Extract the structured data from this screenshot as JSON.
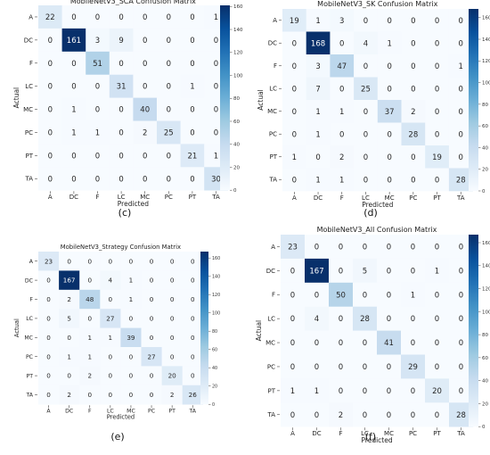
{
  "categories": [
    "A",
    "DC",
    "F",
    "LC",
    "MC",
    "PC",
    "PT",
    "TA"
  ],
  "xlabel": "Predicted",
  "ylabel": "Actual",
  "colormap": {
    "low": "#f7fbff",
    "high": "#08306b"
  },
  "chart_data": [
    {
      "type": "heatmap",
      "title": "MobileNetV3_SCA Confusion Matrix",
      "caption": "(c)",
      "vmax": 161,
      "colorbar_ticks": [
        0,
        20,
        40,
        60,
        80,
        100,
        120,
        140,
        160
      ],
      "values": [
        [
          22,
          0,
          0,
          0,
          0,
          0,
          0,
          1
        ],
        [
          0,
          161,
          3,
          9,
          0,
          0,
          0,
          0
        ],
        [
          0,
          0,
          51,
          0,
          0,
          0,
          0,
          0
        ],
        [
          0,
          0,
          0,
          31,
          0,
          0,
          1,
          0
        ],
        [
          0,
          1,
          0,
          0,
          40,
          0,
          0,
          0
        ],
        [
          0,
          1,
          1,
          0,
          2,
          25,
          0,
          0
        ],
        [
          0,
          0,
          0,
          0,
          0,
          0,
          21,
          1
        ],
        [
          0,
          0,
          0,
          0,
          0,
          0,
          0,
          30
        ]
      ]
    },
    {
      "type": "heatmap",
      "title": "MobileNetV3_SK Confusion Matrix",
      "caption": "(d)",
      "vmax": 168,
      "colorbar_ticks": [
        0,
        20,
        40,
        60,
        80,
        100,
        120,
        140,
        160
      ],
      "values": [
        [
          19,
          1,
          3,
          0,
          0,
          0,
          0,
          0
        ],
        [
          0,
          168,
          0,
          4,
          1,
          0,
          0,
          0
        ],
        [
          0,
          3,
          47,
          0,
          0,
          0,
          0,
          1
        ],
        [
          0,
          7,
          0,
          25,
          0,
          0,
          0,
          0
        ],
        [
          0,
          1,
          1,
          0,
          37,
          2,
          0,
          0
        ],
        [
          0,
          1,
          0,
          0,
          0,
          28,
          0,
          0
        ],
        [
          1,
          0,
          2,
          0,
          0,
          0,
          19,
          0
        ],
        [
          0,
          1,
          1,
          0,
          0,
          0,
          0,
          28
        ]
      ]
    },
    {
      "type": "heatmap",
      "title": "MobileNetV3_Strategy Confusion Matrix",
      "caption": "(e)",
      "vmax": 167,
      "colorbar_ticks": [
        0,
        20,
        40,
        60,
        80,
        100,
        120,
        140,
        160
      ],
      "values": [
        [
          23,
          0,
          0,
          0,
          0,
          0,
          0,
          0
        ],
        [
          0,
          167,
          0,
          4,
          1,
          0,
          0,
          0
        ],
        [
          0,
          2,
          48,
          0,
          1,
          0,
          0,
          0
        ],
        [
          0,
          5,
          0,
          27,
          0,
          0,
          0,
          0
        ],
        [
          0,
          0,
          1,
          1,
          39,
          0,
          0,
          0
        ],
        [
          0,
          1,
          1,
          0,
          0,
          27,
          0,
          0
        ],
        [
          0,
          0,
          2,
          0,
          0,
          0,
          20,
          0
        ],
        [
          0,
          2,
          0,
          0,
          0,
          0,
          2,
          26
        ]
      ]
    },
    {
      "type": "heatmap",
      "title": "MobileNetV3_All Confusion Matrix",
      "caption": "(f)",
      "vmax": 167,
      "colorbar_ticks": [
        0,
        20,
        40,
        60,
        80,
        100,
        120,
        140,
        160
      ],
      "values": [
        [
          23,
          0,
          0,
          0,
          0,
          0,
          0,
          0
        ],
        [
          0,
          167,
          0,
          5,
          0,
          0,
          1,
          0
        ],
        [
          0,
          0,
          50,
          0,
          0,
          1,
          0,
          0
        ],
        [
          0,
          4,
          0,
          28,
          0,
          0,
          0,
          0
        ],
        [
          0,
          0,
          0,
          0,
          41,
          0,
          0,
          0
        ],
        [
          0,
          0,
          0,
          0,
          0,
          29,
          0,
          0
        ],
        [
          1,
          1,
          0,
          0,
          0,
          0,
          20,
          0
        ],
        [
          0,
          0,
          2,
          0,
          0,
          0,
          0,
          28
        ]
      ]
    }
  ]
}
